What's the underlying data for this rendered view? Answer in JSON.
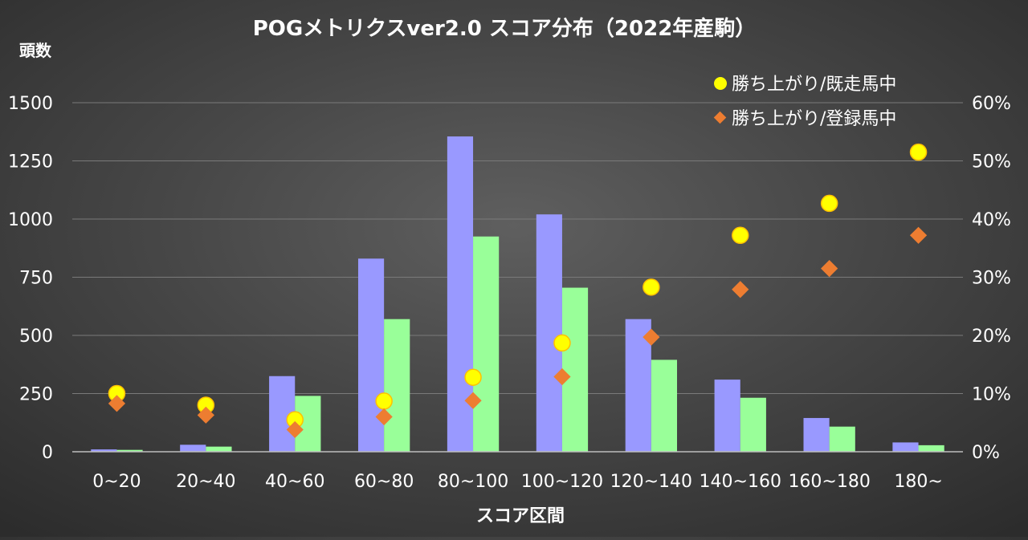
{
  "chart_data": {
    "type": "bar",
    "title": "POGメトリクスver2.0 スコア分布（2022年産駒）",
    "xlabel": "スコア区間",
    "ylabel": "頭数",
    "categories": [
      "0~20",
      "20~40",
      "40~60",
      "60~80",
      "80~100",
      "100~120",
      "120~140",
      "140~160",
      "160~180",
      "180~"
    ],
    "ylim": [
      0,
      1500
    ],
    "yticks": [
      0,
      250,
      500,
      750,
      1000,
      1250,
      1500
    ],
    "y2lim": [
      0,
      60
    ],
    "y2ticks": [
      0,
      10,
      20,
      30,
      40,
      50,
      60
    ],
    "y2tick_suffix": "%",
    "grid": true,
    "legend_position": "top-right",
    "series": [
      {
        "type": "bar",
        "axis": "left",
        "color": "#9999ff",
        "values": [
          10,
          30,
          325,
          830,
          1355,
          1020,
          570,
          310,
          145,
          40
        ]
      },
      {
        "type": "bar",
        "axis": "left",
        "color": "#99ff99",
        "values": [
          8,
          22,
          240,
          570,
          925,
          705,
          395,
          232,
          108,
          28
        ]
      },
      {
        "type": "scatter",
        "axis": "right",
        "marker": "circle",
        "color": "#ffff00",
        "name": "勝ち上がり/既走馬中",
        "values": [
          10.0,
          8.0,
          5.5,
          8.7,
          12.8,
          18.7,
          28.3,
          37.2,
          42.7,
          51.5
        ]
      },
      {
        "type": "scatter",
        "axis": "right",
        "marker": "diamond",
        "color": "#ed7d31",
        "name": "勝ち上がり/登録馬中",
        "values": [
          8.3,
          6.3,
          3.8,
          6.0,
          8.8,
          12.9,
          19.7,
          27.9,
          31.5,
          37.2
        ]
      }
    ]
  }
}
